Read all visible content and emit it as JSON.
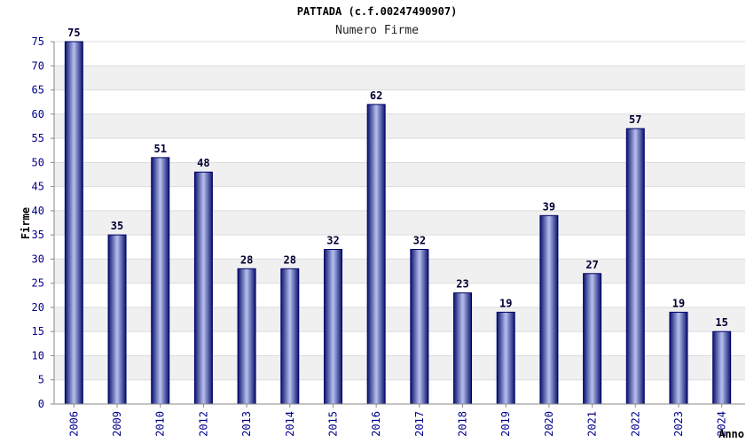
{
  "chart_data": {
    "type": "bar",
    "title": "PATTADA (c.f.00247490907)",
    "subtitle": "Numero Firme",
    "xlabel": "Anno",
    "ylabel": "Firme",
    "categories": [
      "2006",
      "2009",
      "2010",
      "2012",
      "2013",
      "2014",
      "2015",
      "2016",
      "2017",
      "2018",
      "2019",
      "2020",
      "2021",
      "2022",
      "2023",
      "2024"
    ],
    "values": [
      75,
      35,
      51,
      48,
      28,
      28,
      32,
      62,
      32,
      23,
      19,
      39,
      27,
      57,
      19,
      15
    ],
    "ylim": [
      0,
      75
    ],
    "yticks": [
      0,
      5,
      10,
      15,
      20,
      25,
      30,
      35,
      40,
      45,
      50,
      55,
      60,
      65,
      70,
      75
    ],
    "grid": true,
    "bar_color": "#1a2a8c",
    "band_color": "#f0f0f0",
    "tick_color": "#00008b"
  }
}
